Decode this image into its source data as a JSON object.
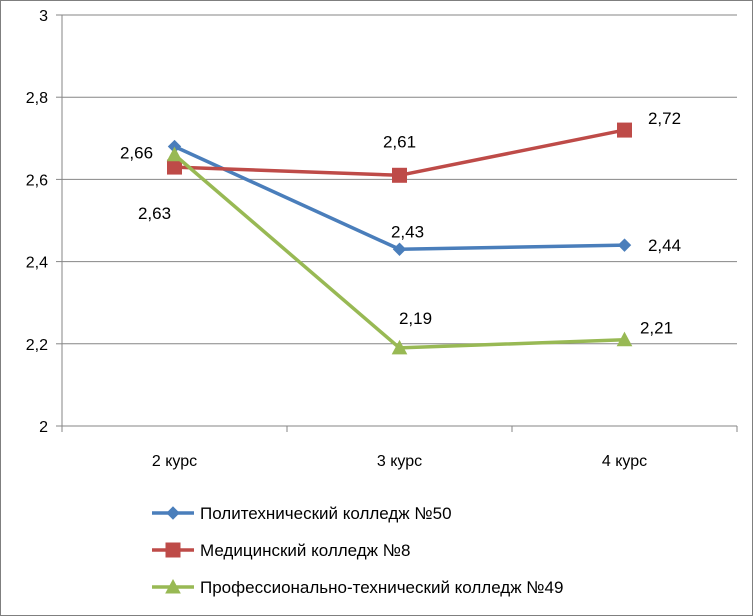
{
  "chart_data": {
    "type": "line",
    "title": "",
    "xlabel": "",
    "ylabel": "",
    "categories": [
      "2 курс",
      "3 курс",
      "4 курс"
    ],
    "ylim": [
      2,
      3
    ],
    "yticks": [
      "2",
      "2,2",
      "2,4",
      "2,6",
      "2,8",
      "3"
    ],
    "ytick_values": [
      2,
      2.2,
      2.4,
      2.6,
      2.8,
      3
    ],
    "grid": "horizontal",
    "legend_position": "bottom",
    "series": [
      {
        "name": "Политехнический колледж №50",
        "values": [
          2.68,
          2.43,
          2.44
        ],
        "labels": [
          "",
          "2,43",
          "2,44"
        ],
        "color": "#4A7EBB",
        "marker": "diamond"
      },
      {
        "name": "Медицинский колледж №8",
        "values": [
          2.63,
          2.61,
          2.72
        ],
        "labels": [
          "2,63",
          "2,61",
          "2,72"
        ],
        "color": "#BE4B48",
        "marker": "square"
      },
      {
        "name": "Профессионально-технический колледж №49",
        "values": [
          2.66,
          2.19,
          2.21
        ],
        "labels": [
          "2,66",
          "2,19",
          "2,21"
        ],
        "color": "#98B954",
        "marker": "triangle"
      }
    ]
  }
}
